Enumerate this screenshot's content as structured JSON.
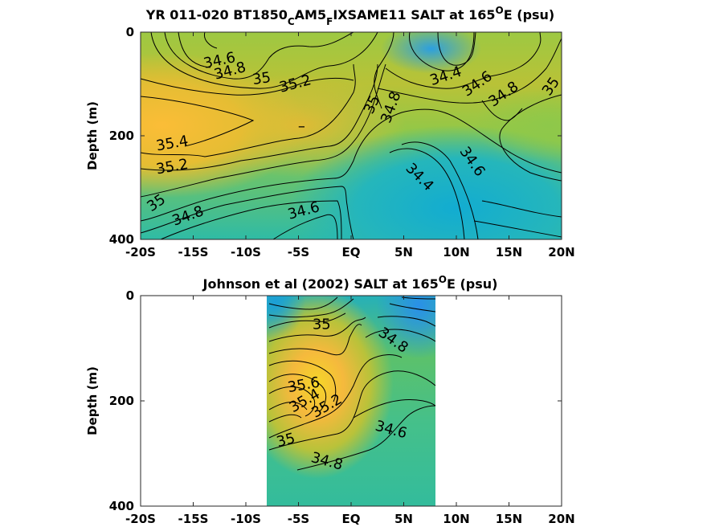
{
  "chart_data": [
    {
      "type": "contour",
      "title": {
        "pre": "YR 011-020 BT1850",
        "sub1": "C",
        "mid": "AM5",
        "sub2": "F",
        "post": "IXSAME11 SALT at 165",
        "sup": "O",
        "end": "E (psu)"
      },
      "xlabel": "",
      "ylabel": "Depth (m)",
      "x_ticks": [
        "-20S",
        "-15S",
        "-10S",
        "-5S",
        "EQ",
        "5N",
        "10N",
        "15N",
        "20N"
      ],
      "y_ticks": [
        "0",
        "200",
        "400"
      ],
      "xlim": [
        -20,
        20
      ],
      "ylim": [
        0,
        400
      ],
      "data_extent": [
        -20,
        20
      ],
      "contour_labels": [
        {
          "text": "34.6",
          "x": -12.5,
          "y": 55,
          "rot": -12
        },
        {
          "text": "34.8",
          "x": -11.5,
          "y": 75,
          "rot": -15
        },
        {
          "text": "35",
          "x": -8.5,
          "y": 90,
          "rot": -8
        },
        {
          "text": "35.2",
          "x": -5.3,
          "y": 100,
          "rot": -15
        },
        {
          "text": "35",
          "x": 2,
          "y": 140,
          "rot": -65
        },
        {
          "text": "34.8",
          "x": 3.8,
          "y": 145,
          "rot": -70
        },
        {
          "text": "34.4",
          "x": 9,
          "y": 85,
          "rot": -18
        },
        {
          "text": "34.6",
          "x": 12,
          "y": 100,
          "rot": -35
        },
        {
          "text": "34.8",
          "x": 14.5,
          "y": 120,
          "rot": -35
        },
        {
          "text": "35",
          "x": 19,
          "y": 105,
          "rot": -55
        },
        {
          "text": "35.4",
          "x": -17,
          "y": 215,
          "rot": -10
        },
        {
          "text": "35.2",
          "x": -17,
          "y": 260,
          "rot": -10
        },
        {
          "text": "34.6",
          "x": 11.5,
          "y": 250,
          "rot": 55
        },
        {
          "text": "34.4",
          "x": 6.5,
          "y": 280,
          "rot": 45
        },
        {
          "text": "35",
          "x": -18.5,
          "y": 330,
          "rot": -35
        },
        {
          "text": "34.8",
          "x": -15.5,
          "y": 355,
          "rot": -20
        },
        {
          "text": "34.6",
          "x": -4.5,
          "y": 345,
          "rot": -15
        },
        {
          "text": "–",
          "x": -4.7,
          "y": 182,
          "rot": 0
        }
      ]
    },
    {
      "type": "contour",
      "title": {
        "pre": "Johnson et al (2002) SALT at 165",
        "sup": "O",
        "end": "E (psu)"
      },
      "xlabel": "",
      "ylabel": "Depth (m)",
      "x_ticks": [
        "-20S",
        "-15S",
        "-10S",
        "-5S",
        "EQ",
        "5N",
        "10N",
        "15N",
        "20N"
      ],
      "y_ticks": [
        "0",
        "200",
        "400"
      ],
      "xlim": [
        -20,
        20
      ],
      "ylim": [
        0,
        400
      ],
      "data_extent": [
        -8,
        8
      ],
      "contour_labels": [
        {
          "text": "35",
          "x": -2.8,
          "y": 55,
          "rot": 0
        },
        {
          "text": "34.8",
          "x": 4,
          "y": 85,
          "rot": 35
        },
        {
          "text": "35.6",
          "x": -4.5,
          "y": 170,
          "rot": -10
        },
        {
          "text": "35.4",
          "x": -4.4,
          "y": 200,
          "rot": -30
        },
        {
          "text": "35.2",
          "x": -2.3,
          "y": 210,
          "rot": -30
        },
        {
          "text": "34.6",
          "x": 3.8,
          "y": 255,
          "rot": 15
        },
        {
          "text": "35",
          "x": -6.2,
          "y": 275,
          "rot": -15
        },
        {
          "text": "34.8",
          "x": -2.3,
          "y": 315,
          "rot": 15
        }
      ]
    }
  ]
}
